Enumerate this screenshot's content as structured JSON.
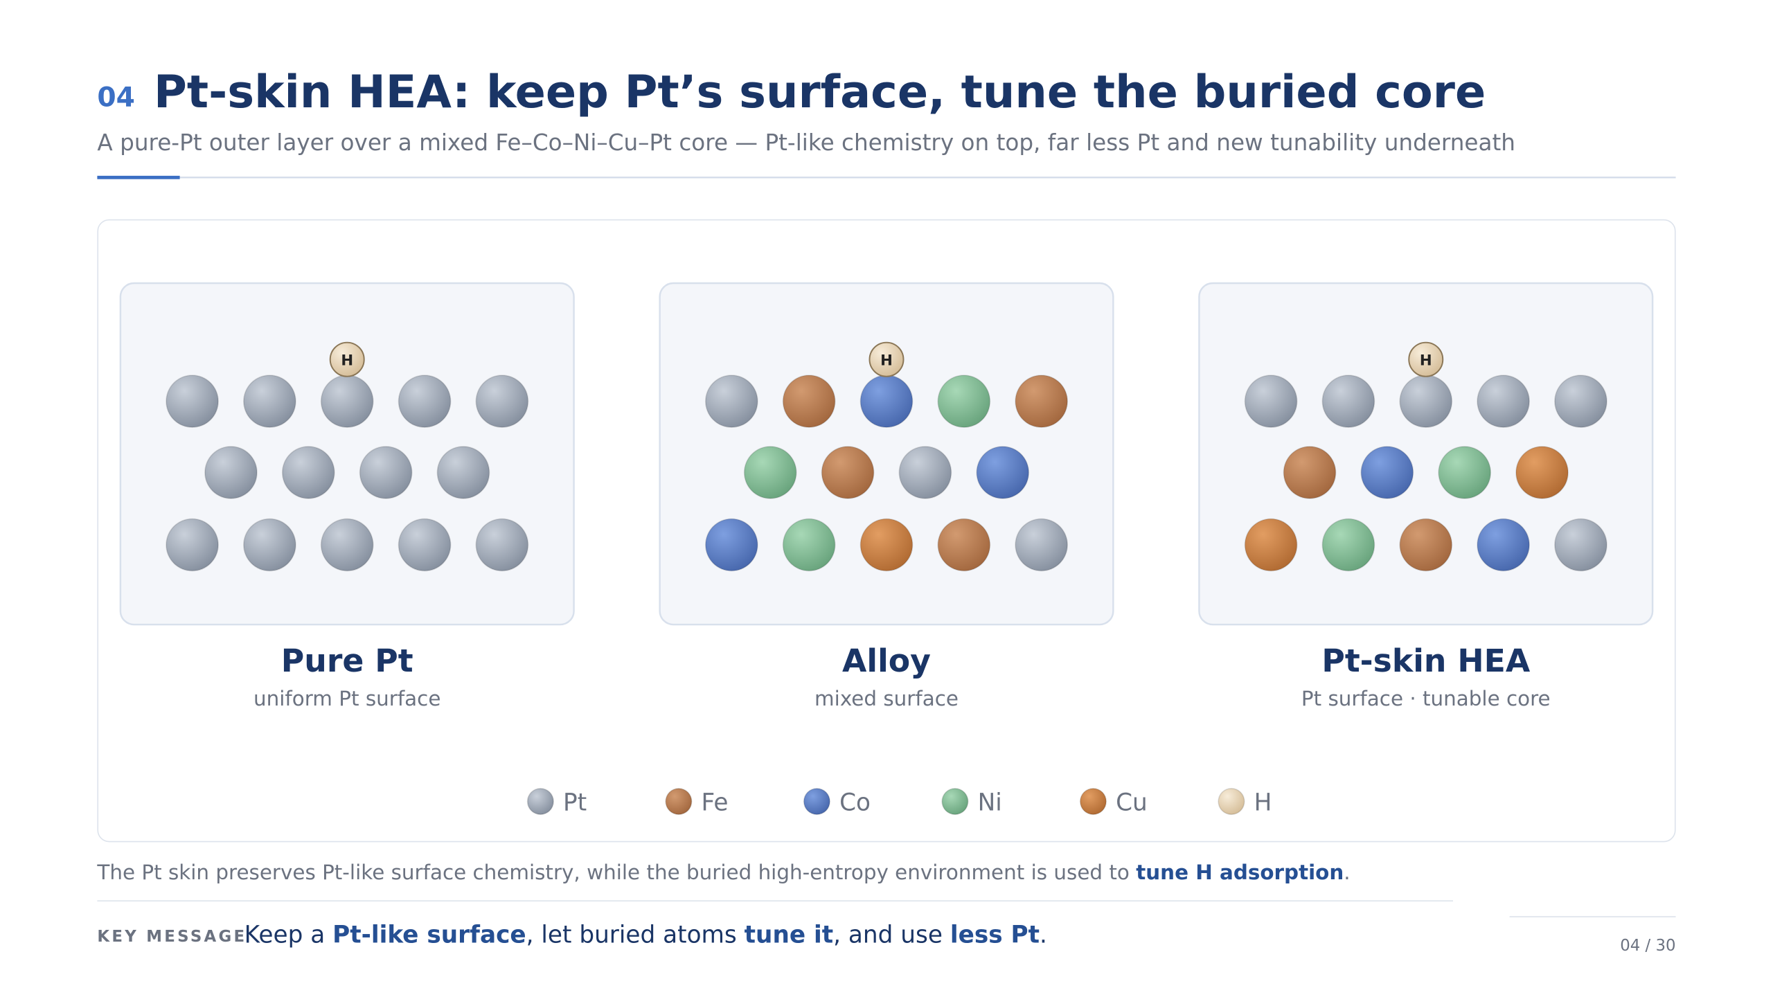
{
  "header": {
    "number": "04",
    "title": "Pt-skin HEA: keep Pt’s surface, tune the buried core",
    "subtitle": "A pure-Pt outer layer over a mixed Fe–Co–Ni–Cu–Pt core — Pt-like chemistry on top, far less Pt and new tunability underneath"
  },
  "panels": [
    {
      "title": "Pure Pt",
      "subtitle": "uniform Pt surface",
      "adsorbate": "H"
    },
    {
      "title": "Alloy",
      "subtitle": "mixed surface",
      "adsorbate": "H"
    },
    {
      "title": "Pt-skin HEA",
      "subtitle": "Pt surface · tunable core",
      "adsorbate": "H"
    }
  ],
  "legend": [
    {
      "label": "Pt"
    },
    {
      "label": "Fe"
    },
    {
      "label": "Co"
    },
    {
      "label": "Ni"
    },
    {
      "label": "Cu"
    },
    {
      "label": "H"
    }
  ],
  "caption": {
    "text": "The Pt skin preserves Pt-like surface chemistry, while the buried high-entropy environment is used to ",
    "emphasis": "tune H adsorption",
    "end": "."
  },
  "key_message": {
    "label": "KEY MESSAGE",
    "parts": [
      "Keep a ",
      "Pt-like surface",
      ", let buried atoms ",
      "tune it",
      ", and use ",
      "less Pt",
      "."
    ]
  },
  "page_number": "04 / 30"
}
